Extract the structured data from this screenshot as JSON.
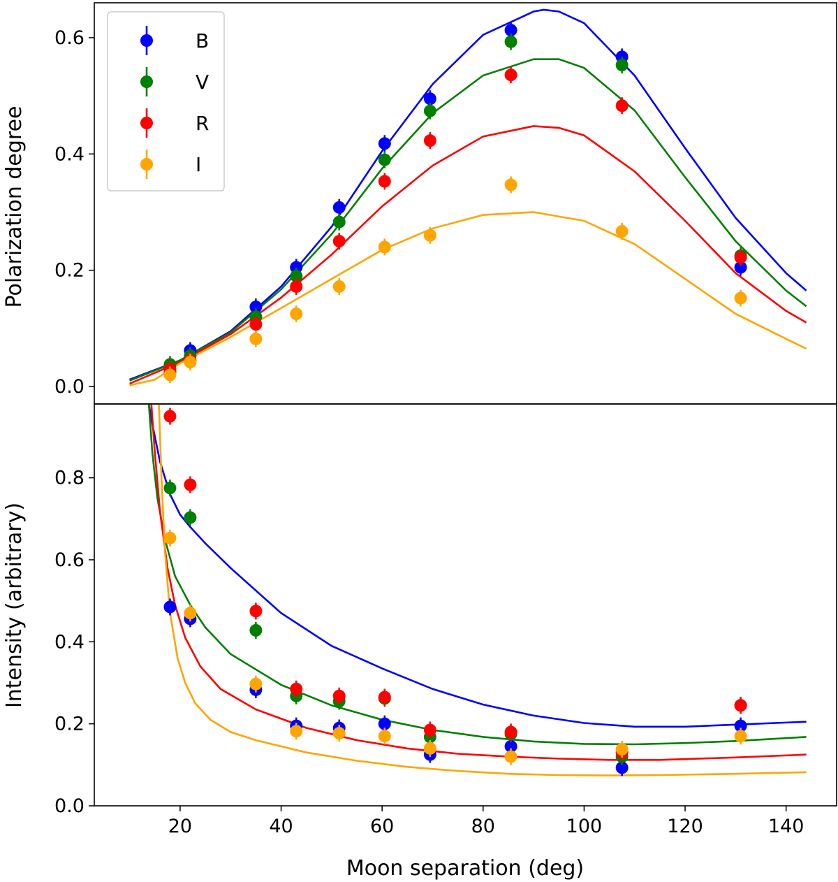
{
  "chart_data": [
    {
      "type": "scatter",
      "panel": "top",
      "xlabel": "",
      "ylabel": "Polarization degree",
      "xlim": [
        3,
        150
      ],
      "ylim": [
        -0.03,
        0.66
      ],
      "yticks": [
        0.0,
        0.2,
        0.4,
        0.6
      ],
      "ytick_labels": [
        "0.0",
        "0.2",
        "0.4",
        "0.6"
      ],
      "legend": {
        "position": "top-left",
        "entries": [
          "B",
          "V",
          "R",
          "I"
        ]
      },
      "series": [
        {
          "name": "B",
          "color": "#0000ff",
          "x": [
            18,
            22,
            35,
            43,
            51.5,
            60.5,
            69.5,
            85.5,
            107.5,
            131
          ],
          "y": [
            0.025,
            0.062,
            0.137,
            0.205,
            0.308,
            0.418,
            0.495,
            0.613,
            0.567,
            0.205
          ],
          "fit_x": [
            10,
            20,
            30,
            40,
            50,
            60,
            70,
            80,
            90,
            92,
            95,
            100,
            110,
            120,
            130,
            140,
            144
          ],
          "fit_y": [
            0.012,
            0.045,
            0.095,
            0.172,
            0.275,
            0.405,
            0.52,
            0.605,
            0.645,
            0.648,
            0.645,
            0.625,
            0.535,
            0.41,
            0.29,
            0.195,
            0.165
          ]
        },
        {
          "name": "V",
          "color": "#008000",
          "x": [
            18,
            22,
            35,
            43,
            51.5,
            60.5,
            69.5,
            85.5,
            107.5,
            131
          ],
          "y": [
            0.038,
            0.053,
            0.12,
            0.19,
            0.283,
            0.39,
            0.474,
            0.593,
            0.553,
            0.225
          ],
          "fit_x": [
            10,
            20,
            30,
            40,
            50,
            60,
            70,
            80,
            90,
            95,
            100,
            110,
            120,
            130,
            140,
            144
          ],
          "fit_y": [
            0.01,
            0.045,
            0.093,
            0.167,
            0.262,
            0.375,
            0.47,
            0.535,
            0.563,
            0.563,
            0.548,
            0.475,
            0.36,
            0.25,
            0.165,
            0.138
          ]
        },
        {
          "name": "R",
          "color": "#ff0000",
          "x": [
            18,
            22,
            35,
            43,
            51.5,
            60.5,
            69.5,
            85.5,
            107.5,
            131
          ],
          "y": [
            0.03,
            0.045,
            0.107,
            0.172,
            0.25,
            0.353,
            0.423,
            0.536,
            0.483,
            0.222
          ],
          "fit_x": [
            10,
            20,
            30,
            40,
            50,
            60,
            70,
            80,
            90,
            95,
            100,
            110,
            120,
            130,
            140,
            144
          ],
          "fit_y": [
            0.005,
            0.042,
            0.09,
            0.153,
            0.227,
            0.31,
            0.38,
            0.43,
            0.448,
            0.445,
            0.432,
            0.37,
            0.285,
            0.195,
            0.13,
            0.11
          ]
        },
        {
          "name": "I",
          "color": "#ffa500",
          "x": [
            18,
            22,
            35,
            43,
            51.5,
            60.5,
            69.5,
            85.5,
            107.5,
            131
          ],
          "y": [
            0.02,
            0.042,
            0.082,
            0.125,
            0.172,
            0.24,
            0.26,
            0.347,
            0.267,
            0.152
          ],
          "fit_x": [
            10,
            15,
            20,
            30,
            40,
            50,
            60,
            70,
            80,
            90,
            100,
            110,
            120,
            130,
            140,
            144
          ],
          "fit_y": [
            0.002,
            0.012,
            0.04,
            0.085,
            0.135,
            0.185,
            0.235,
            0.272,
            0.295,
            0.3,
            0.285,
            0.245,
            0.185,
            0.125,
            0.082,
            0.065
          ]
        }
      ]
    },
    {
      "type": "scatter",
      "panel": "bottom",
      "xlabel": "Moon separation (deg)",
      "ylabel": "Intensity (arbitrary)",
      "xlim": [
        3,
        150
      ],
      "ylim": [
        0.0,
        0.98
      ],
      "xticks": [
        20,
        40,
        60,
        80,
        100,
        120,
        140
      ],
      "xtick_labels": [
        "20",
        "40",
        "60",
        "80",
        "100",
        "120",
        "140"
      ],
      "yticks": [
        0.0,
        0.2,
        0.4,
        0.6,
        0.8
      ],
      "ytick_labels": [
        "0.0",
        "0.2",
        "0.4",
        "0.6",
        "0.8"
      ],
      "series": [
        {
          "name": "B",
          "color": "#0000ff",
          "x": [
            18,
            22,
            35,
            43,
            51.5,
            60.5,
            69.5,
            85.5,
            107.5,
            131
          ],
          "y": [
            0.485,
            0.456,
            0.283,
            0.195,
            0.19,
            0.2,
            0.125,
            0.145,
            0.093,
            0.195
          ],
          "fit_x": [
            13.8,
            14.5,
            16,
            18,
            20,
            22,
            25,
            30,
            40,
            50,
            60,
            70,
            80,
            90,
            100,
            110,
            120,
            130,
            144
          ],
          "fit_y": [
            0.98,
            0.93,
            0.84,
            0.76,
            0.71,
            0.68,
            0.64,
            0.58,
            0.47,
            0.39,
            0.335,
            0.285,
            0.247,
            0.22,
            0.202,
            0.193,
            0.193,
            0.198,
            0.205
          ]
        },
        {
          "name": "V",
          "color": "#008000",
          "x": [
            18,
            22,
            35,
            43,
            51.5,
            60.5,
            69.5,
            85.5,
            107.5,
            131
          ],
          "y": [
            0.775,
            0.703,
            0.428,
            0.268,
            0.255,
            0.262,
            0.168,
            0.175,
            0.12,
            0.245
          ],
          "fit_x": [
            13.8,
            14.5,
            15.5,
            17,
            19,
            22,
            25,
            30,
            40,
            50,
            60,
            70,
            80,
            90,
            100,
            110,
            120,
            130,
            144
          ],
          "fit_y": [
            0.98,
            0.86,
            0.75,
            0.65,
            0.56,
            0.49,
            0.435,
            0.37,
            0.295,
            0.245,
            0.21,
            0.185,
            0.168,
            0.157,
            0.151,
            0.15,
            0.153,
            0.158,
            0.168
          ]
        },
        {
          "name": "R",
          "color": "#ff0000",
          "x": [
            18,
            22,
            35,
            43,
            51.5,
            60.5,
            69.5,
            85.5,
            107.5,
            131
          ],
          "y": [
            0.95,
            0.783,
            0.475,
            0.285,
            0.268,
            0.265,
            0.185,
            0.18,
            0.13,
            0.245
          ],
          "fit_x": [
            14.3,
            15,
            16,
            17.5,
            19,
            21,
            24,
            28,
            35,
            45,
            55,
            65,
            75,
            85,
            95,
            105,
            115,
            130,
            144
          ],
          "fit_y": [
            0.98,
            0.86,
            0.72,
            0.58,
            0.49,
            0.41,
            0.34,
            0.285,
            0.235,
            0.19,
            0.16,
            0.14,
            0.127,
            0.12,
            0.115,
            0.112,
            0.112,
            0.118,
            0.125
          ]
        },
        {
          "name": "I",
          "color": "#ffa500",
          "x": [
            18,
            22,
            35,
            43,
            51.5,
            60.5,
            69.5,
            85.5,
            107.5,
            131
          ],
          "y": [
            0.653,
            0.47,
            0.297,
            0.182,
            0.177,
            0.17,
            0.14,
            0.12,
            0.138,
            0.17
          ],
          "fit_x": [
            15.8,
            16.3,
            17,
            18,
            19.5,
            21,
            23,
            26,
            30,
            35,
            45,
            55,
            65,
            75,
            85,
            95,
            105,
            115,
            130,
            144
          ],
          "fit_y": [
            0.98,
            0.8,
            0.62,
            0.47,
            0.36,
            0.3,
            0.25,
            0.21,
            0.18,
            0.16,
            0.13,
            0.11,
            0.095,
            0.085,
            0.078,
            0.075,
            0.074,
            0.075,
            0.078,
            0.082
          ]
        }
      ]
    }
  ]
}
